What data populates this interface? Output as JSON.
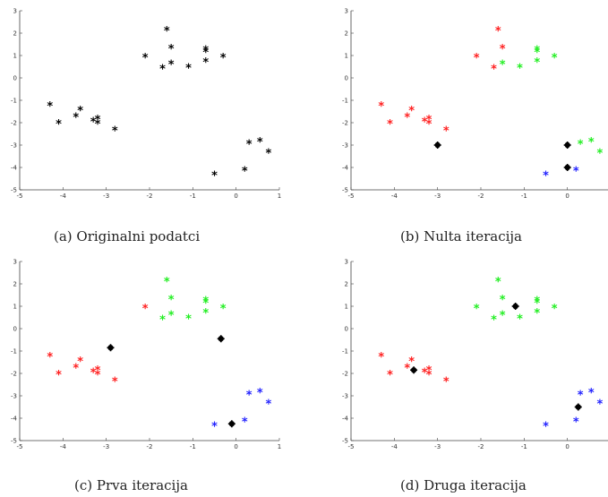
{
  "colors": {
    "black": "#000000",
    "red": "#ff2020",
    "green": "#22ee22",
    "blue": "#2222ff",
    "centroid": "#000000"
  },
  "chart_data": [
    {
      "type": "scatter",
      "caption": "(a) Originalni podatci",
      "xlim": [
        -5,
        1
      ],
      "ylim": [
        -5,
        3
      ],
      "xticks": [
        "-5",
        "-4",
        "-3",
        "-2",
        "-1",
        "0",
        "1"
      ],
      "yticks": [
        "-5",
        "-4",
        "-3",
        "-2",
        "-1",
        "0",
        "1",
        "2",
        "3"
      ],
      "series": [
        {
          "color": "black",
          "points": [
            [
              -1.6,
              2.1
            ],
            [
              -1.5,
              1.3
            ],
            [
              -1.5,
              0.6
            ],
            [
              -1.7,
              0.4
            ],
            [
              -2.1,
              0.9
            ],
            [
              -1.1,
              0.45
            ],
            [
              -0.7,
              1.25
            ],
            [
              -0.7,
              1.15
            ],
            [
              -0.7,
              0.7
            ],
            [
              -0.3,
              0.9
            ],
            [
              -4.3,
              -1.25
            ],
            [
              -4.1,
              -2.05
            ],
            [
              -3.7,
              -1.75
            ],
            [
              -3.6,
              -1.45
            ],
            [
              -3.3,
              -1.95
            ],
            [
              -3.2,
              -1.85
            ],
            [
              -3.2,
              -2.05
            ],
            [
              -2.8,
              -2.35
            ],
            [
              0.3,
              -2.95
            ],
            [
              0.55,
              -2.85
            ],
            [
              0.75,
              -3.35
            ],
            [
              0.2,
              -4.15
            ],
            [
              -0.5,
              -4.35
            ]
          ]
        }
      ],
      "centroids": []
    },
    {
      "type": "scatter",
      "caption": "(b) Nulta iteracija",
      "xlim": [
        -5,
        1
      ],
      "ylim": [
        -5,
        3
      ],
      "xticks": [
        "-5",
        "-4",
        "-3",
        "-2",
        "-1",
        "0",
        "1"
      ],
      "yticks": [
        "-5",
        "-4",
        "-3",
        "-2",
        "-1",
        "0",
        "1",
        "2",
        "3"
      ],
      "series": [
        {
          "color": "red",
          "points": [
            [
              -1.6,
              2.1
            ],
            [
              -1.5,
              1.3
            ],
            [
              -1.7,
              0.4
            ],
            [
              -2.1,
              0.9
            ],
            [
              -4.3,
              -1.25
            ],
            [
              -4.1,
              -2.05
            ],
            [
              -3.7,
              -1.75
            ],
            [
              -3.6,
              -1.45
            ],
            [
              -3.3,
              -1.95
            ],
            [
              -3.2,
              -1.85
            ],
            [
              -3.2,
              -2.05
            ],
            [
              -2.8,
              -2.35
            ]
          ]
        },
        {
          "color": "green",
          "points": [
            [
              -1.5,
              0.6
            ],
            [
              -1.1,
              0.45
            ],
            [
              -0.7,
              1.25
            ],
            [
              -0.7,
              1.15
            ],
            [
              -0.7,
              0.7
            ],
            [
              -0.3,
              0.9
            ],
            [
              0.3,
              -2.95
            ],
            [
              0.55,
              -2.85
            ],
            [
              0.75,
              -3.35
            ]
          ]
        },
        {
          "color": "blue",
          "points": [
            [
              0.2,
              -4.15
            ],
            [
              -0.5,
              -4.35
            ]
          ]
        }
      ],
      "centroids": [
        [
          -3.0,
          -3.0
        ],
        [
          0.0,
          -3.0
        ],
        [
          0.0,
          -4.0
        ]
      ]
    },
    {
      "type": "scatter",
      "caption": "(c) Prva iteracija",
      "xlim": [
        -5,
        1
      ],
      "ylim": [
        -5,
        3
      ],
      "xticks": [
        "-5",
        "-4",
        "-3",
        "-2",
        "-1",
        "0",
        "1"
      ],
      "yticks": [
        "-5",
        "-4",
        "-3",
        "-2",
        "-1",
        "0",
        "1",
        "2",
        "3"
      ],
      "series": [
        {
          "color": "red",
          "points": [
            [
              -2.1,
              0.9
            ],
            [
              -4.3,
              -1.25
            ],
            [
              -4.1,
              -2.05
            ],
            [
              -3.7,
              -1.75
            ],
            [
              -3.6,
              -1.45
            ],
            [
              -3.3,
              -1.95
            ],
            [
              -3.2,
              -1.85
            ],
            [
              -3.2,
              -2.05
            ],
            [
              -2.8,
              -2.35
            ]
          ]
        },
        {
          "color": "green",
          "points": [
            [
              -1.6,
              2.1
            ],
            [
              -1.5,
              1.3
            ],
            [
              -1.5,
              0.6
            ],
            [
              -1.7,
              0.4
            ],
            [
              -1.1,
              0.45
            ],
            [
              -0.7,
              1.25
            ],
            [
              -0.7,
              1.15
            ],
            [
              -0.7,
              0.7
            ],
            [
              -0.3,
              0.9
            ]
          ]
        },
        {
          "color": "blue",
          "points": [
            [
              0.3,
              -2.95
            ],
            [
              0.55,
              -2.85
            ],
            [
              0.75,
              -3.35
            ],
            [
              0.2,
              -4.15
            ],
            [
              -0.5,
              -4.35
            ]
          ]
        }
      ],
      "centroids": [
        [
          -2.9,
          -0.85
        ],
        [
          -0.35,
          -0.45
        ],
        [
          -0.1,
          -4.25
        ]
      ]
    },
    {
      "type": "scatter",
      "caption": "(d) Druga iteracija",
      "xlim": [
        -5,
        1
      ],
      "ylim": [
        -5,
        3
      ],
      "xticks": [
        "-5",
        "-4",
        "-3",
        "-2",
        "-1",
        "0",
        "1"
      ],
      "yticks": [
        "-5",
        "-4",
        "-3",
        "-2",
        "-1",
        "0",
        "1",
        "2",
        "3"
      ],
      "series": [
        {
          "color": "red",
          "points": [
            [
              -4.3,
              -1.25
            ],
            [
              -4.1,
              -2.05
            ],
            [
              -3.7,
              -1.75
            ],
            [
              -3.6,
              -1.45
            ],
            [
              -3.3,
              -1.95
            ],
            [
              -3.2,
              -1.85
            ],
            [
              -3.2,
              -2.05
            ],
            [
              -2.8,
              -2.35
            ]
          ]
        },
        {
          "color": "green",
          "points": [
            [
              -1.6,
              2.1
            ],
            [
              -1.5,
              1.3
            ],
            [
              -1.5,
              0.6
            ],
            [
              -1.7,
              0.4
            ],
            [
              -2.1,
              0.9
            ],
            [
              -1.1,
              0.45
            ],
            [
              -0.7,
              1.25
            ],
            [
              -0.7,
              1.15
            ],
            [
              -0.7,
              0.7
            ],
            [
              -0.3,
              0.9
            ]
          ]
        },
        {
          "color": "blue",
          "points": [
            [
              0.3,
              -2.95
            ],
            [
              0.55,
              -2.85
            ],
            [
              0.75,
              -3.35
            ],
            [
              0.2,
              -4.15
            ],
            [
              -0.5,
              -4.35
            ]
          ]
        }
      ],
      "centroids": [
        [
          -3.55,
          -1.85
        ],
        [
          -1.2,
          1.0
        ],
        [
          0.25,
          -3.5
        ]
      ]
    }
  ]
}
